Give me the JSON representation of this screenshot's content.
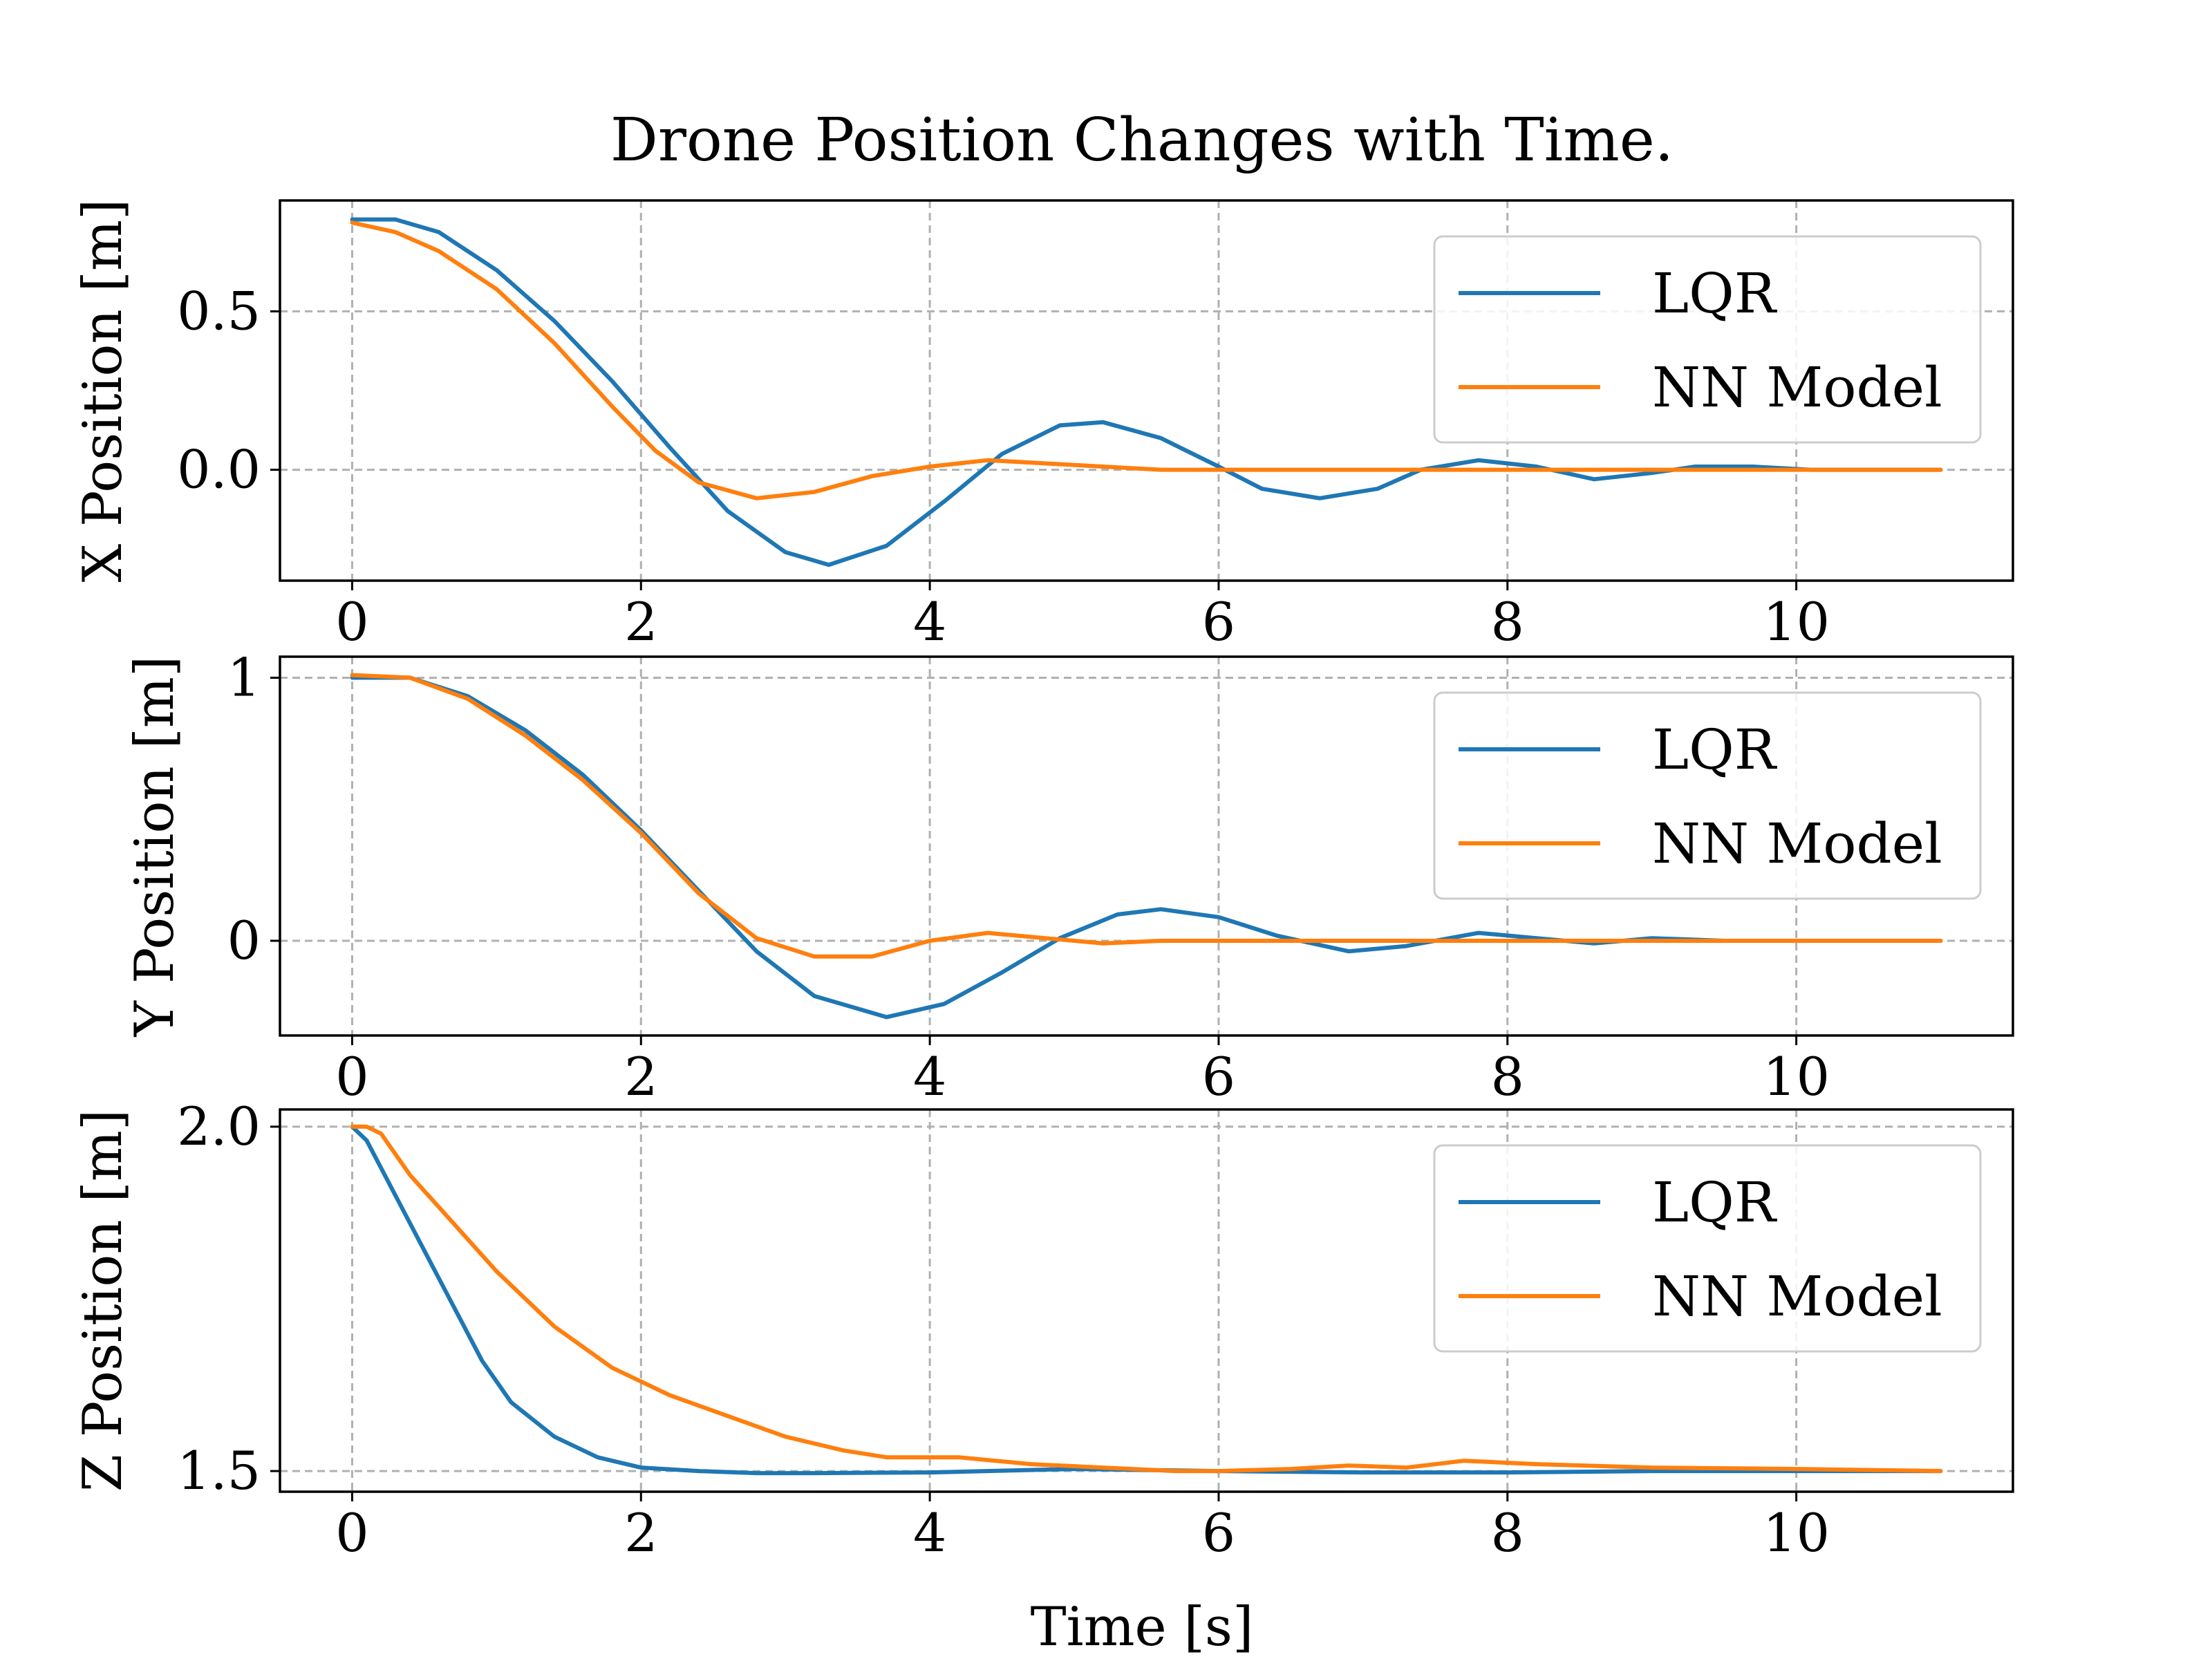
{
  "figure": {
    "title": "Drone Position Changes with Time.",
    "xlabel": "Time [s]"
  },
  "legend": {
    "lqr": "LQR",
    "nn": "NN Model"
  },
  "colors": {
    "lqr": "#1f77b4",
    "nn": "#ff7f0e",
    "grid": "#b0b0b0",
    "axes": "#000000"
  },
  "chart_data": [
    {
      "type": "line",
      "ylabel": "X Position [m]",
      "xlim": [
        -0.5,
        11.5
      ],
      "ylim": [
        -0.35,
        0.85
      ],
      "xticks": [
        0,
        2,
        4,
        6,
        8,
        10
      ],
      "yticks": [
        0.0,
        0.5
      ],
      "ytick_labels": [
        "0.0",
        "0.5"
      ],
      "grid": true,
      "legend_position": "upper right",
      "series": [
        {
          "name": "LQR",
          "x": [
            0,
            0.3,
            0.6,
            1.0,
            1.4,
            1.8,
            2.2,
            2.6,
            3.0,
            3.3,
            3.7,
            4.1,
            4.5,
            4.9,
            5.2,
            5.6,
            6.0,
            6.3,
            6.7,
            7.1,
            7.4,
            7.8,
            8.2,
            8.6,
            9.0,
            9.3,
            9.7,
            10.1,
            10.5,
            11.0
          ],
          "y": [
            0.79,
            0.79,
            0.75,
            0.63,
            0.47,
            0.28,
            0.07,
            -0.13,
            -0.26,
            -0.3,
            -0.24,
            -0.1,
            0.05,
            0.14,
            0.15,
            0.1,
            0.01,
            -0.06,
            -0.09,
            -0.06,
            0.0,
            0.03,
            0.01,
            -0.03,
            -0.01,
            0.01,
            0.01,
            0.0,
            0.0,
            0.0
          ]
        },
        {
          "name": "NN Model",
          "x": [
            0,
            0.3,
            0.6,
            1.0,
            1.4,
            1.8,
            2.1,
            2.4,
            2.8,
            3.2,
            3.6,
            4.0,
            4.4,
            4.8,
            5.2,
            5.6,
            6.0,
            7.0,
            8.0,
            9.0,
            10.0,
            11.0
          ],
          "y": [
            0.78,
            0.75,
            0.69,
            0.57,
            0.4,
            0.2,
            0.06,
            -0.04,
            -0.09,
            -0.07,
            -0.02,
            0.01,
            0.03,
            0.02,
            0.01,
            0.0,
            0.0,
            0.0,
            0.0,
            0.0,
            0.0,
            0.0
          ]
        }
      ]
    },
    {
      "type": "line",
      "ylabel": "Y Position [m]",
      "xlim": [
        -0.5,
        11.5
      ],
      "ylim": [
        -0.36,
        1.08
      ],
      "xticks": [
        0,
        2,
        4,
        6,
        8,
        10
      ],
      "yticks": [
        0,
        1
      ],
      "ytick_labels": [
        "0",
        "1"
      ],
      "grid": true,
      "legend_position": "upper right",
      "series": [
        {
          "name": "LQR",
          "x": [
            0,
            0.4,
            0.8,
            1.2,
            1.6,
            2.0,
            2.4,
            2.8,
            3.2,
            3.7,
            4.1,
            4.5,
            4.9,
            5.3,
            5.6,
            6.0,
            6.4,
            6.9,
            7.3,
            7.8,
            8.2,
            8.6,
            9.0,
            9.5,
            10.0,
            10.5,
            11.0
          ],
          "y": [
            1.0,
            1.0,
            0.93,
            0.8,
            0.63,
            0.42,
            0.19,
            -0.04,
            -0.21,
            -0.29,
            -0.24,
            -0.12,
            0.01,
            0.1,
            0.12,
            0.09,
            0.02,
            -0.04,
            -0.02,
            0.03,
            0.01,
            -0.01,
            0.01,
            0.0,
            0.0,
            0.0,
            0.0
          ]
        },
        {
          "name": "NN Model",
          "x": [
            0,
            0.4,
            0.8,
            1.2,
            1.6,
            2.0,
            2.4,
            2.8,
            3.2,
            3.6,
            4.0,
            4.4,
            4.8,
            5.2,
            5.6,
            6.0,
            7.0,
            8.0,
            9.0,
            10.0,
            11.0
          ],
          "y": [
            1.01,
            1.0,
            0.92,
            0.78,
            0.61,
            0.41,
            0.18,
            0.01,
            -0.06,
            -0.06,
            0.0,
            0.03,
            0.01,
            -0.01,
            0.0,
            0.0,
            0.0,
            0.0,
            0.0,
            0.0,
            0.0
          ]
        }
      ]
    },
    {
      "type": "line",
      "ylabel": "Z Position [m]",
      "xlim": [
        -0.5,
        11.5
      ],
      "ylim": [
        1.47,
        2.025
      ],
      "xticks": [
        0,
        2,
        4,
        6,
        8,
        10
      ],
      "yticks": [
        1.5,
        2.0
      ],
      "ytick_labels": [
        "1.5",
        "2.0"
      ],
      "grid": true,
      "legend_position": "upper right",
      "series": [
        {
          "name": "LQR",
          "x": [
            0,
            0.1,
            0.3,
            0.5,
            0.7,
            0.9,
            1.1,
            1.4,
            1.7,
            2.0,
            2.4,
            2.8,
            3.2,
            4.0,
            5.0,
            6.0,
            7.0,
            8.0,
            9.0,
            10.0,
            11.0
          ],
          "y": [
            2.0,
            1.98,
            1.9,
            1.82,
            1.74,
            1.66,
            1.6,
            1.55,
            1.52,
            1.505,
            1.5,
            1.497,
            1.497,
            1.498,
            1.503,
            1.5,
            1.498,
            1.498,
            1.5,
            1.5,
            1.5
          ]
        },
        {
          "name": "NN Model",
          "x": [
            0,
            0.1,
            0.2,
            0.4,
            0.7,
            1.0,
            1.4,
            1.8,
            2.2,
            2.6,
            3.0,
            3.4,
            3.7,
            4.2,
            4.7,
            5.2,
            5.7,
            6.0,
            6.5,
            6.9,
            7.3,
            7.7,
            8.2,
            9.0,
            10.0,
            11.0
          ],
          "y": [
            2.0,
            2.0,
            1.99,
            1.93,
            1.86,
            1.79,
            1.71,
            1.65,
            1.61,
            1.58,
            1.55,
            1.53,
            1.52,
            1.52,
            1.51,
            1.505,
            1.5,
            1.5,
            1.503,
            1.508,
            1.505,
            1.515,
            1.51,
            1.505,
            1.503,
            1.5
          ]
        }
      ]
    }
  ]
}
